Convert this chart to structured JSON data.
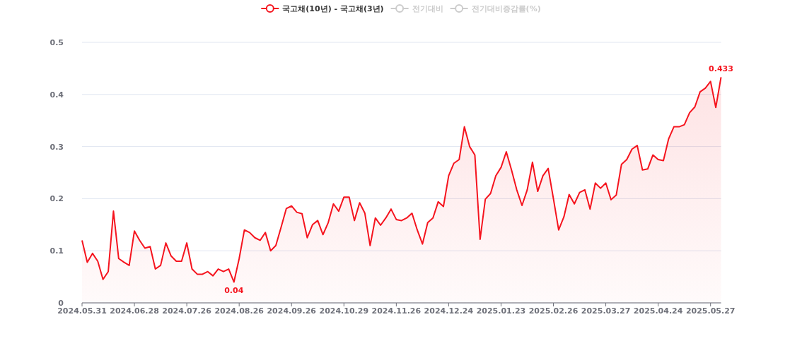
{
  "chart_data": {
    "type": "area",
    "legend": "top",
    "grid": "y",
    "categories": [
      "2024.05.31",
      null,
      null,
      null,
      null,
      null,
      null,
      null,
      null,
      null,
      "2024.06.28",
      null,
      null,
      null,
      null,
      null,
      null,
      null,
      null,
      null,
      "2024.07.26",
      null,
      null,
      null,
      null,
      null,
      null,
      null,
      null,
      null,
      "2024.08.26",
      null,
      null,
      null,
      null,
      null,
      null,
      null,
      null,
      null,
      "2024.09.26",
      null,
      null,
      null,
      null,
      null,
      null,
      null,
      null,
      null,
      "2024.10.29",
      null,
      null,
      null,
      null,
      null,
      null,
      null,
      null,
      null,
      "2024.11.26",
      null,
      null,
      null,
      null,
      null,
      null,
      null,
      null,
      null,
      "2024.12.24",
      null,
      null,
      null,
      null,
      null,
      null,
      null,
      null,
      null,
      "2025.01.23",
      null,
      null,
      null,
      null,
      null,
      null,
      null,
      null,
      null,
      "2025.02.26",
      null,
      null,
      null,
      null,
      null,
      null,
      null,
      null,
      null,
      "2025.03.27",
      null,
      null,
      null,
      null,
      null,
      null,
      null,
      null,
      null,
      "2025.04.24",
      null,
      null,
      null,
      null,
      null,
      null,
      null,
      null,
      null,
      "2025.05.27",
      null,
      null
    ],
    "ylim": [
      0,
      0.5
    ],
    "yticks": [
      0,
      0.1,
      0.2,
      0.3,
      0.4,
      0.5
    ],
    "series": [
      {
        "name": "국고채(10년) - 국고채(3년)",
        "color": "#f5141e",
        "values": [
          0.12,
          0.078,
          0.095,
          0.08,
          0.045,
          0.06,
          0.176,
          0.085,
          0.078,
          0.072,
          0.138,
          0.12,
          0.105,
          0.108,
          0.065,
          0.072,
          0.115,
          0.09,
          0.08,
          0.08,
          0.115,
          0.065,
          0.055,
          0.055,
          0.06,
          0.052,
          0.065,
          0.06,
          0.065,
          0.04,
          0.085,
          0.14,
          0.135,
          0.125,
          0.12,
          0.135,
          0.1,
          0.11,
          0.145,
          0.181,
          0.186,
          0.174,
          0.171,
          0.125,
          0.15,
          0.158,
          0.131,
          0.154,
          0.19,
          0.176,
          0.203,
          0.203,
          0.158,
          0.192,
          0.172,
          0.11,
          0.163,
          0.149,
          0.163,
          0.18,
          0.16,
          0.158,
          0.163,
          0.172,
          0.14,
          0.113,
          0.154,
          0.163,
          0.194,
          0.185,
          0.244,
          0.268,
          0.275,
          0.338,
          0.3,
          0.284,
          0.122,
          0.199,
          0.21,
          0.244,
          0.26,
          0.29,
          0.255,
          0.217,
          0.187,
          0.217,
          0.27,
          0.214,
          0.244,
          0.258,
          0.2,
          0.14,
          0.165,
          0.208,
          0.19,
          0.212,
          0.217,
          0.18,
          0.23,
          0.22,
          0.23,
          0.198,
          0.207,
          0.266,
          0.275,
          0.295,
          0.302,
          0.255,
          0.257,
          0.284,
          0.275,
          0.273,
          0.315,
          0.338,
          0.338,
          0.342,
          0.365,
          0.376,
          0.405,
          0.412,
          0.425,
          0.375,
          0.433
        ],
        "value_labels": [
          null,
          null,
          null,
          null,
          null,
          null,
          null,
          null,
          null,
          null,
          null,
          null,
          null,
          null,
          null,
          null,
          null,
          null,
          null,
          null,
          null,
          null,
          null,
          null,
          null,
          null,
          null,
          null,
          null,
          "0.04",
          null,
          null,
          null,
          null,
          null,
          null,
          null,
          null,
          null,
          null,
          null,
          null,
          null,
          null,
          null,
          null,
          null,
          null,
          null,
          null,
          null,
          null,
          null,
          null,
          null,
          null,
          null,
          null,
          null,
          null,
          null,
          null,
          null,
          null,
          null,
          null,
          null,
          null,
          null,
          null,
          null,
          null,
          null,
          null,
          null,
          null,
          null,
          null,
          null,
          null,
          null,
          null,
          null,
          null,
          null,
          null,
          null,
          null,
          null,
          null,
          null,
          null,
          null,
          null,
          null,
          null,
          null,
          null,
          null,
          null,
          null,
          null,
          null,
          null,
          null,
          null,
          null,
          null,
          null,
          null,
          null,
          null,
          null,
          null,
          null,
          null,
          null,
          null,
          null,
          null,
          null,
          null,
          "0.433"
        ]
      },
      {
        "name": "전기대비",
        "color": "#cccccc",
        "values": [
          null,
          null,
          null,
          null,
          null,
          null,
          null,
          null,
          null,
          null,
          null,
          null,
          null,
          null,
          null,
          null,
          null,
          null,
          null,
          null,
          null,
          null,
          null,
          null,
          null,
          null,
          null,
          null,
          null,
          null,
          null,
          null,
          null,
          null,
          null,
          null,
          null,
          null,
          null,
          null,
          null,
          null,
          null,
          null,
          null,
          null,
          null,
          null,
          null,
          null,
          null,
          null,
          null,
          null,
          null,
          null,
          null,
          null,
          null,
          null,
          null,
          null,
          null,
          null,
          null,
          null,
          null,
          null,
          null,
          null,
          null,
          null,
          null,
          null,
          null,
          null,
          null,
          null,
          null,
          null,
          null,
          null,
          null,
          null,
          null,
          null,
          null,
          null,
          null,
          null,
          null,
          null,
          null,
          null,
          null,
          null,
          null,
          null,
          null,
          null,
          null,
          null,
          null,
          null,
          null,
          null,
          null,
          null,
          null,
          null,
          null,
          null,
          null,
          null,
          null,
          null,
          null,
          null,
          null,
          null,
          null,
          null,
          null
        ]
      },
      {
        "name": "전기대비증감률(%)",
        "color": "#cccccc",
        "values": [
          null,
          null,
          null,
          null,
          null,
          null,
          null,
          null,
          null,
          null,
          null,
          null,
          null,
          null,
          null,
          null,
          null,
          null,
          null,
          null,
          null,
          null,
          null,
          null,
          null,
          null,
          null,
          null,
          null,
          null,
          null,
          null,
          null,
          null,
          null,
          null,
          null,
          null,
          null,
          null,
          null,
          null,
          null,
          null,
          null,
          null,
          null,
          null,
          null,
          null,
          null,
          null,
          null,
          null,
          null,
          null,
          null,
          null,
          null,
          null,
          null,
          null,
          null,
          null,
          null,
          null,
          null,
          null,
          null,
          null,
          null,
          null,
          null,
          null,
          null,
          null,
          null,
          null,
          null,
          null,
          null,
          null,
          null,
          null,
          null,
          null,
          null,
          null,
          null,
          null,
          null,
          null,
          null,
          null,
          null,
          null,
          null,
          null,
          null,
          null,
          null,
          null,
          null,
          null,
          null,
          null,
          null,
          null,
          null,
          null,
          null,
          null,
          null,
          null,
          null,
          null,
          null,
          null,
          null,
          null,
          null,
          null,
          null
        ]
      }
    ]
  }
}
